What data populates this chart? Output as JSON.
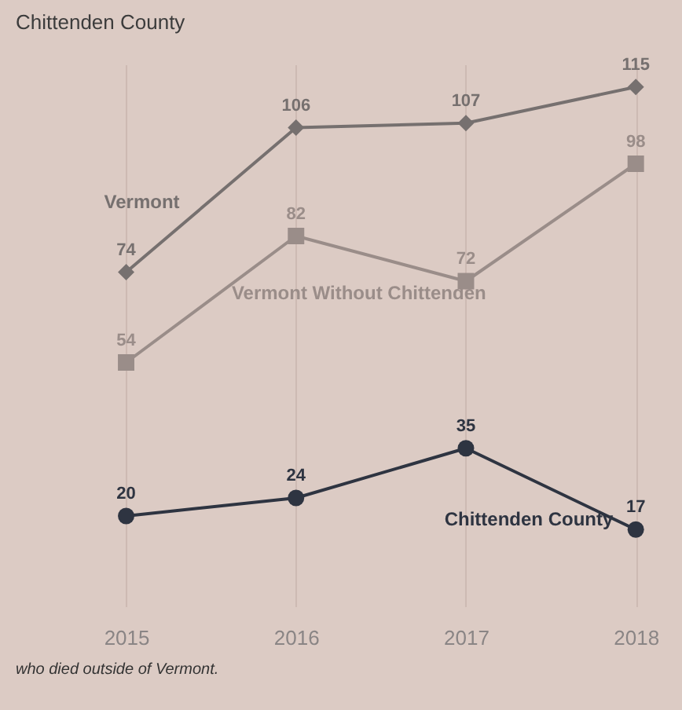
{
  "chart_data": {
    "type": "line",
    "title": "Chittenden County",
    "categories": [
      "2015",
      "2016",
      "2017",
      "2018"
    ],
    "series": [
      {
        "name": "Vermont",
        "color": "#76706f",
        "marker": "diamond",
        "values": [
          74,
          106,
          107,
          115
        ],
        "value_labels": [
          "74",
          "106",
          "107",
          "115"
        ]
      },
      {
        "name": "Vermont Without Chittenden",
        "color": "#9a8d89",
        "marker": "square",
        "values": [
          54,
          82,
          72,
          98
        ],
        "value_labels": [
          "54",
          "82",
          "72",
          "98"
        ]
      },
      {
        "name": "Chittenden County",
        "color": "#2e3441",
        "marker": "circle",
        "values": [
          20,
          24,
          35,
          17
        ],
        "value_labels": [
          "20",
          "24",
          "35",
          "17"
        ]
      }
    ],
    "grid": "x",
    "annotations": [
      "who died outside of Vermont."
    ]
  }
}
